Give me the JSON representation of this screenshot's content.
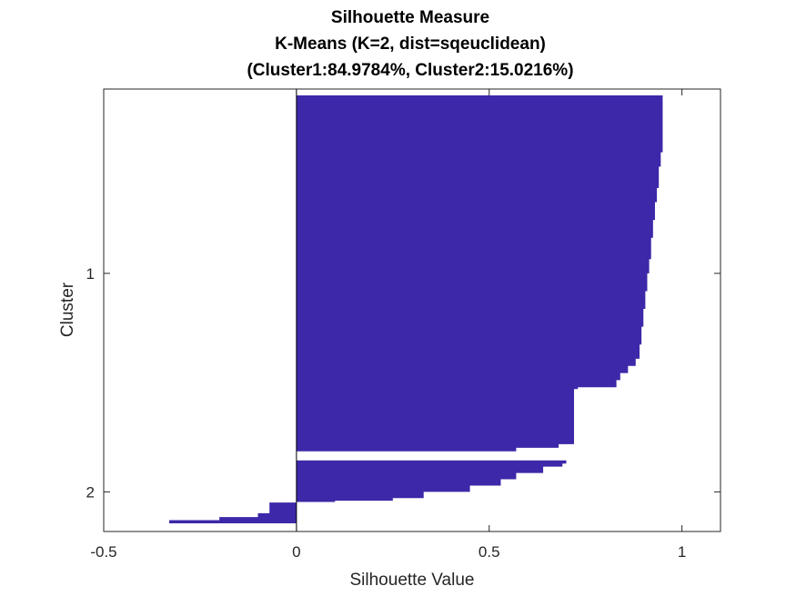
{
  "chart_data": {
    "type": "bar",
    "orientation": "horizontal",
    "title": [
      "Silhouette Measure",
      "K-Means (K=2, dist=sqeuclidean)",
      "(Cluster1:84.9784%, Cluster2:15.0216%)"
    ],
    "xlabel": "Silhouette Value",
    "ylabel": "Cluster",
    "xlim": [
      -0.5,
      1.1
    ],
    "xticks": [
      -0.5,
      0,
      0.5,
      1
    ],
    "xtick_labels": [
      "-0.5",
      "0",
      "0.5",
      "1"
    ],
    "ytick_labels": [
      "1",
      "2"
    ],
    "grid": false,
    "bar_color": "#3c28a8",
    "series": [
      {
        "name": "1",
        "count_share": 84.9784,
        "profile": [
          [
            0,
            0.95
          ],
          [
            0.1,
            0.95
          ],
          [
            0.16,
            0.945
          ],
          [
            0.2,
            0.94
          ],
          [
            0.26,
            0.935
          ],
          [
            0.3,
            0.93
          ],
          [
            0.35,
            0.925
          ],
          [
            0.4,
            0.92
          ],
          [
            0.46,
            0.915
          ],
          [
            0.5,
            0.91
          ],
          [
            0.55,
            0.905
          ],
          [
            0.6,
            0.9
          ],
          [
            0.65,
            0.895
          ],
          [
            0.7,
            0.89
          ],
          [
            0.74,
            0.88
          ],
          [
            0.76,
            0.86
          ],
          [
            0.78,
            0.84
          ],
          [
            0.8,
            0.83
          ],
          [
            0.82,
            0.73
          ],
          [
            0.825,
            0.72
          ],
          [
            0.97,
            0.72
          ],
          [
            0.98,
            0.68
          ],
          [
            0.99,
            0.57
          ],
          [
            1.0,
            0.42
          ]
        ]
      },
      {
        "name": "2",
        "count_share": 15.0216,
        "profile": [
          [
            0,
            0.7
          ],
          [
            0.05,
            0.69
          ],
          [
            0.1,
            0.64
          ],
          [
            0.2,
            0.57
          ],
          [
            0.3,
            0.53
          ],
          [
            0.4,
            0.45
          ],
          [
            0.5,
            0.33
          ],
          [
            0.6,
            0.25
          ],
          [
            0.64,
            0.1
          ],
          [
            0.66,
            0.0
          ],
          [
            0.67,
            -0.07
          ],
          [
            0.8,
            -0.07
          ],
          [
            0.84,
            -0.1
          ],
          [
            0.9,
            -0.2
          ],
          [
            0.95,
            -0.33
          ],
          [
            1.0,
            -0.47
          ]
        ]
      }
    ]
  }
}
